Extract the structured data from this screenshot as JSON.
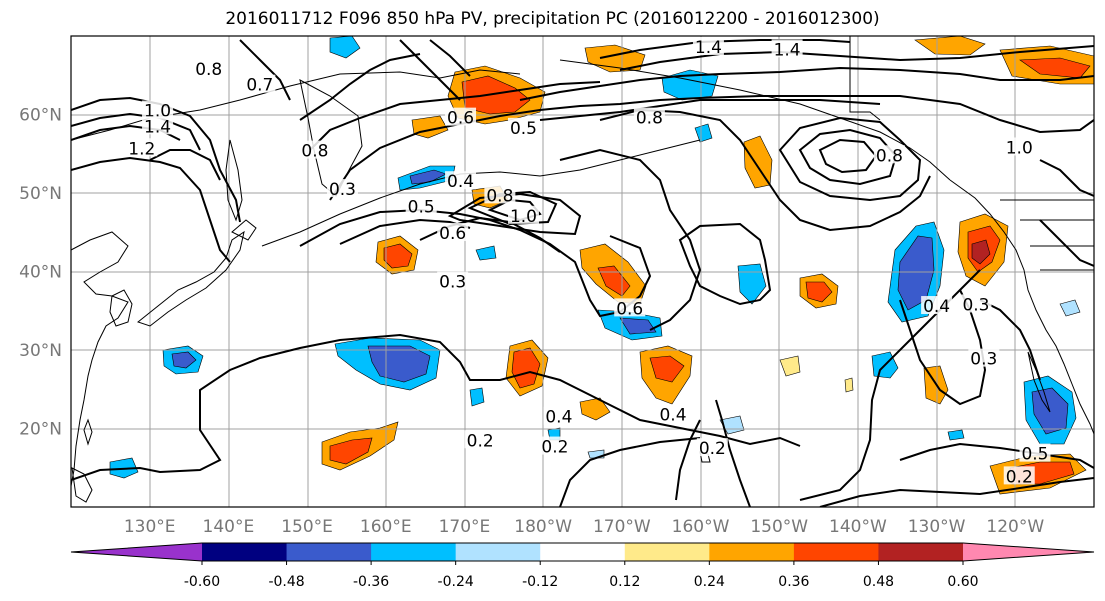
{
  "title": "2016011712 F096 850 hPa PV, precipitation PC (2016012200 - 2016012300)",
  "map": {
    "lon_range": [
      120,
      250
    ],
    "lat_range": [
      10,
      70
    ],
    "lon_ticks": [
      {
        "lon": 130,
        "label": "130°E"
      },
      {
        "lon": 140,
        "label": "140°E"
      },
      {
        "lon": 150,
        "label": "150°E"
      },
      {
        "lon": 160,
        "label": "160°E"
      },
      {
        "lon": 170,
        "label": "170°E"
      },
      {
        "lon": 180,
        "label": "180°W"
      },
      {
        "lon": 190,
        "label": "170°W"
      },
      {
        "lon": 200,
        "label": "160°W"
      },
      {
        "lon": 210,
        "label": "150°W"
      },
      {
        "lon": 220,
        "label": "140°W"
      },
      {
        "lon": 230,
        "label": "130°W"
      },
      {
        "lon": 240,
        "label": "120°W"
      }
    ],
    "lat_ticks": [
      {
        "lat": 20,
        "label": "20°N"
      },
      {
        "lat": 30,
        "label": "30°N"
      },
      {
        "lat": 40,
        "label": "40°N"
      },
      {
        "lat": 50,
        "label": "50°N"
      },
      {
        "lat": 60,
        "label": "60°N"
      }
    ],
    "gridlines": true
  },
  "colorbar": {
    "colors": [
      "#9932cc",
      "#000080",
      "#3a5bcc",
      "#00bfff",
      "#b0e2ff",
      "#ffffff",
      "#ffea8a",
      "#ffa500",
      "#ff4500",
      "#b22222",
      "#ff88b0"
    ],
    "boundary_labels": [
      "-0.60",
      "-0.48",
      "-0.36",
      "-0.24",
      "-0.12",
      "0.12",
      "0.24",
      "0.36",
      "0.48",
      "0.60"
    ],
    "extend": "both"
  },
  "contour_labels": [
    {
      "text": "1.4",
      "lon": 201,
      "lat": 68.6
    },
    {
      "text": "1.4",
      "lon": 211,
      "lat": 68.3
    },
    {
      "text": "0.8",
      "lon": 137.5,
      "lat": 65.8
    },
    {
      "text": "0.7",
      "lon": 144,
      "lat": 63.8
    },
    {
      "text": "1.0",
      "lon": 131,
      "lat": 60.5
    },
    {
      "text": "1.4",
      "lon": 131,
      "lat": 58.5
    },
    {
      "text": "1.2",
      "lon": 129,
      "lat": 55.7
    },
    {
      "text": "0.8",
      "lon": 151,
      "lat": 55.4
    },
    {
      "text": "0.6",
      "lon": 169.5,
      "lat": 59.6
    },
    {
      "text": "0.5",
      "lon": 177.5,
      "lat": 58.3
    },
    {
      "text": "0.8",
      "lon": 193.5,
      "lat": 59.6
    },
    {
      "text": "0.8",
      "lon": 224,
      "lat": 54.8
    },
    {
      "text": "1.0",
      "lon": 240.5,
      "lat": 55.8
    },
    {
      "text": "0.3",
      "lon": 154.5,
      "lat": 50.5
    },
    {
      "text": "0.4",
      "lon": 169.5,
      "lat": 51.5
    },
    {
      "text": "0.5",
      "lon": 164.5,
      "lat": 48.3
    },
    {
      "text": "0.8",
      "lon": 174.5,
      "lat": 49.7
    },
    {
      "text": "1.0",
      "lon": 177.5,
      "lat": 47.1
    },
    {
      "text": "0.6",
      "lon": 168.5,
      "lat": 44.9
    },
    {
      "text": "0.3",
      "lon": 168.5,
      "lat": 38.7
    },
    {
      "text": "0.6",
      "lon": 191,
      "lat": 35.3
    },
    {
      "text": "0.4",
      "lon": 230,
      "lat": 35.6
    },
    {
      "text": "0.3",
      "lon": 235,
      "lat": 35.8
    },
    {
      "text": "0.3",
      "lon": 236,
      "lat": 28.9
    },
    {
      "text": "0.4",
      "lon": 182,
      "lat": 21.5
    },
    {
      "text": "0.4",
      "lon": 196.5,
      "lat": 21.8
    },
    {
      "text": "0.2",
      "lon": 172,
      "lat": 18.5
    },
    {
      "text": "0.2",
      "lon": 181.5,
      "lat": 17.7
    },
    {
      "text": "0.2",
      "lon": 201.5,
      "lat": 17.5
    },
    {
      "text": "0.5",
      "lon": 242.5,
      "lat": 16.8
    },
    {
      "text": "0.2",
      "lon": 240.5,
      "lat": 13.9
    }
  ]
}
